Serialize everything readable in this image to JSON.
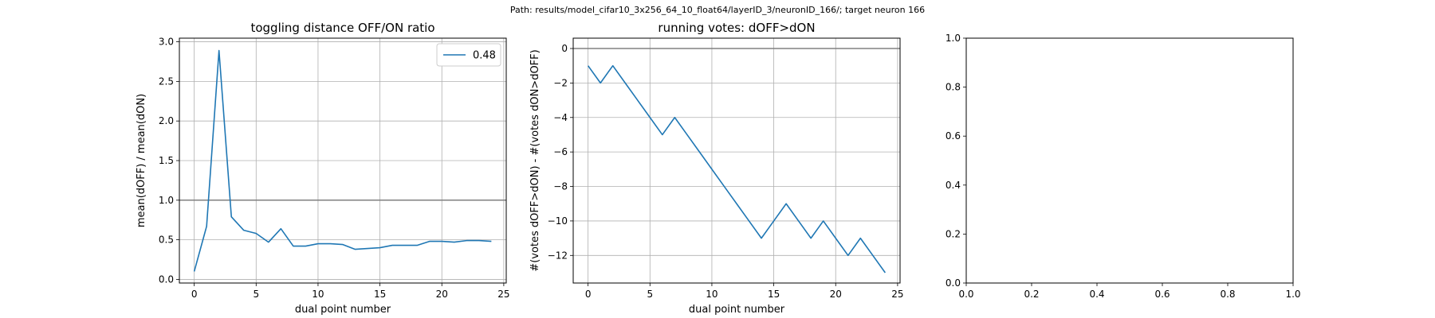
{
  "suptitle": "Path: results/model_cifar10_3x256_64_10_float64/layerID_3/neuronID_166/; target neuron 166",
  "colors": {
    "series": "#1f77b4",
    "grid": "#b0b0b0",
    "refline": "#808080",
    "axes": "#000000"
  },
  "chart_data": [
    {
      "type": "line",
      "title": "toggling distance OFF/ON ratio",
      "xlabel": "dual point number",
      "ylabel": "mean(dOFF) / mean(dON)",
      "xlim": [
        -1.2,
        25.2
      ],
      "ylim": [
        -0.046,
        3.046
      ],
      "xticks": [
        0,
        5,
        10,
        15,
        20,
        25
      ],
      "yticks": [
        0.0,
        0.5,
        1.0,
        1.5,
        2.0,
        2.5,
        3.0
      ],
      "grid": true,
      "hline": 1.0,
      "legend": {
        "position": "top-right",
        "entries": [
          "0.48"
        ]
      },
      "series": [
        {
          "name": "0.48",
          "x": [
            0,
            1,
            2,
            3,
            4,
            5,
            6,
            7,
            8,
            9,
            10,
            11,
            12,
            13,
            14,
            15,
            16,
            17,
            18,
            19,
            20,
            21,
            22,
            23,
            24
          ],
          "y": [
            0.1,
            0.67,
            2.89,
            0.79,
            0.62,
            0.58,
            0.47,
            0.64,
            0.42,
            0.42,
            0.45,
            0.45,
            0.44,
            0.38,
            0.39,
            0.4,
            0.43,
            0.43,
            0.43,
            0.48,
            0.48,
            0.47,
            0.49,
            0.49,
            0.48
          ]
        }
      ]
    },
    {
      "type": "line",
      "title": "running votes: dOFF>dON",
      "xlabel": "dual point number",
      "ylabel": "#(votes dOFF>dON) - #(votes dON>dOFF)",
      "xlim": [
        -1.2,
        25.2
      ],
      "ylim": [
        -13.6,
        0.6
      ],
      "xticks": [
        0,
        5,
        10,
        15,
        20,
        25
      ],
      "yticks": [
        0,
        -2,
        -4,
        -6,
        -8,
        -10,
        -12
      ],
      "grid": true,
      "hline": 0,
      "series": [
        {
          "x": [
            0,
            1,
            2,
            3,
            4,
            5,
            6,
            7,
            8,
            9,
            10,
            11,
            12,
            13,
            14,
            15,
            16,
            17,
            18,
            19,
            20,
            21,
            22,
            23,
            24
          ],
          "y": [
            -1,
            -2,
            -1,
            -2,
            -3,
            -4,
            -5,
            -4,
            -5,
            -6,
            -7,
            -8,
            -9,
            -10,
            -11,
            -10,
            -9,
            -10,
            -11,
            -10,
            -11,
            -12,
            -11,
            -12,
            -13
          ]
        }
      ]
    },
    {
      "type": "line",
      "title": "",
      "xlabel": "",
      "ylabel": "",
      "xlim": [
        0,
        1
      ],
      "ylim": [
        0,
        1
      ],
      "xticks": [
        0.0,
        0.2,
        0.4,
        0.6,
        0.8,
        1.0
      ],
      "yticks": [
        0.0,
        0.2,
        0.4,
        0.6,
        0.8,
        1.0
      ],
      "grid": false,
      "series": []
    }
  ]
}
